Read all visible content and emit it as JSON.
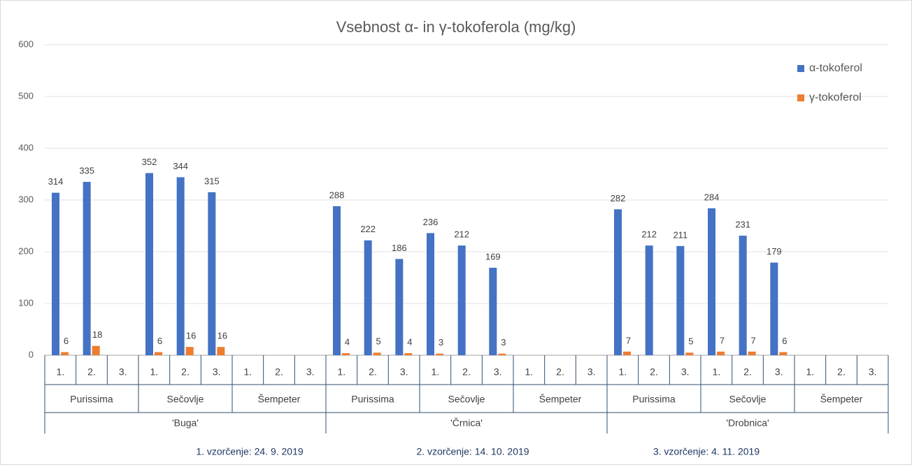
{
  "chart_data": {
    "type": "bar",
    "title": "Vsebnost α- in γ-tokoferola (mg/kg)",
    "categories": [
      "1.",
      "2.",
      "3.",
      "1.",
      "2.",
      "3.",
      "1.",
      "2.",
      "3.",
      "1.",
      "2.",
      "3.",
      "1.",
      "2.",
      "3.",
      "1.",
      "2.",
      "3.",
      "1.",
      "2.",
      "3.",
      "1.",
      "2.",
      "3.",
      "1.",
      "2.",
      "3."
    ],
    "groups": [
      "Purissima",
      "Sečovlje",
      "Šempeter",
      "Purissima",
      "Sečovlje",
      "Šempeter",
      "Purissima",
      "Sečovlje",
      "Šempeter"
    ],
    "supergroups": [
      "'Buga'",
      "'Črnica'",
      "'Drobnica'"
    ],
    "series": [
      {
        "name": "α-tokoferol",
        "color": "#4472c4",
        "values": [
          314,
          335,
          null,
          352,
          344,
          315,
          null,
          null,
          null,
          288,
          222,
          186,
          236,
          212,
          169,
          null,
          null,
          null,
          282,
          212,
          211,
          284,
          231,
          179,
          null,
          null,
          null
        ]
      },
      {
        "name": "γ-tokoferol",
        "color": "#ed7d31",
        "values": [
          6,
          18,
          null,
          6,
          16,
          16,
          null,
          null,
          null,
          4,
          5,
          4,
          3,
          null,
          3,
          null,
          null,
          null,
          7,
          null,
          5,
          7,
          7,
          6,
          null,
          null,
          null
        ]
      }
    ],
    "ylim": [
      0,
      600
    ],
    "yticks": [
      0,
      100,
      200,
      300,
      400,
      500,
      600
    ],
    "grid": true,
    "legend": "top-right",
    "notes": [
      "1. vzorčenje: 24. 9. 2019",
      "2. vzorčenje: 14. 10. 2019",
      "3. vzorčenje: 4. 11. 2019"
    ]
  }
}
